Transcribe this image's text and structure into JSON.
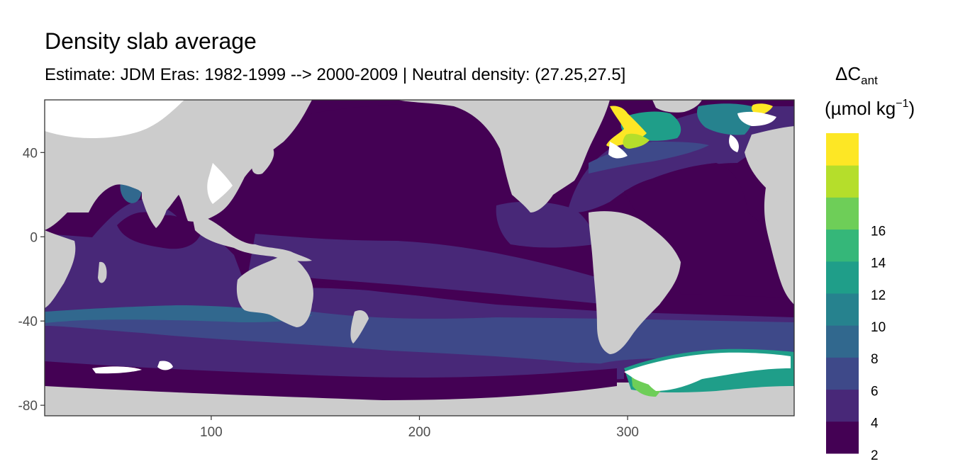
{
  "title": "Density slab average",
  "subtitle": "Estimate: JDM Eras: 1982-1999 --> 2000-2009 | Neutral density: (27.25,27.5]",
  "map": {
    "x_ticks": [
      "100",
      "200",
      "300"
    ],
    "y_ticks": [
      "40",
      "0",
      "-40",
      "-80"
    ],
    "x_range": [
      20,
      380
    ],
    "y_range": [
      -85,
      65
    ],
    "land_color": "#cccccc",
    "no_data_color": "#ffffff"
  },
  "legend": {
    "title_main": "ΔC",
    "title_sub": "ant",
    "unit_open": "(µmol kg",
    "unit_sup": "−1",
    "unit_close": ")",
    "labels": [
      "16",
      "14",
      "12",
      "10",
      "8",
      "6",
      "4",
      "2"
    ],
    "colors": [
      "#440154",
      "#482878",
      "#3e4989",
      "#31688e",
      "#26828e",
      "#1f9e89",
      "#35b779",
      "#6ece58",
      "#b5de2b",
      "#fde725"
    ]
  }
}
